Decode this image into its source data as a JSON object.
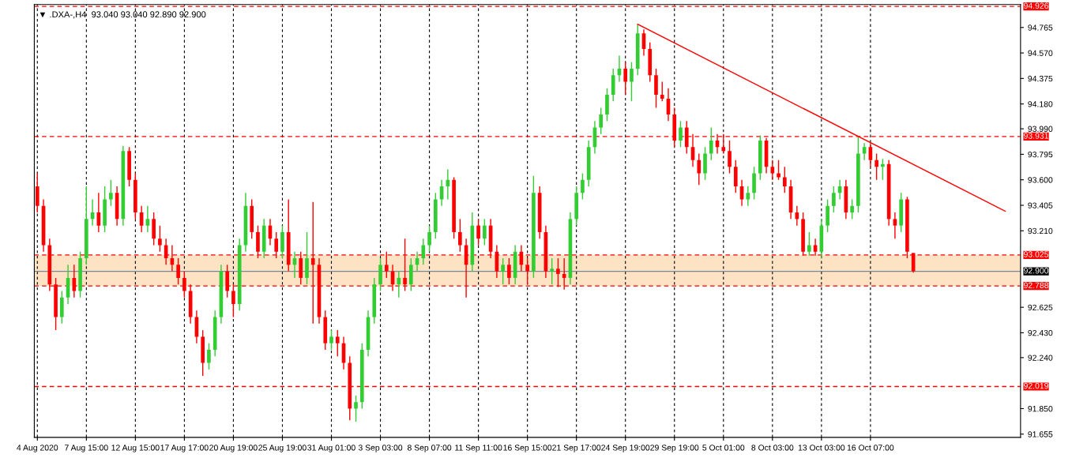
{
  "chart_data": {
    "type": "candlestick",
    "title": "▼ .DXA-,H4  93.040 93.040 92.890 92.900",
    "categories": [
      "4 Aug 2020",
      null,
      null,
      null,
      null,
      null,
      null,
      null,
      "7 Aug 15:00",
      null,
      null,
      null,
      null,
      null,
      null,
      null,
      "12 Aug 15:00",
      null,
      null,
      null,
      null,
      null,
      null,
      null,
      "17 Aug 17:00",
      null,
      null,
      null,
      null,
      null,
      null,
      null,
      "20 Aug 19:00",
      null,
      null,
      null,
      null,
      null,
      null,
      null,
      "25 Aug 19:00",
      null,
      null,
      null,
      null,
      null,
      null,
      null,
      "31 Aug 01:00",
      null,
      null,
      null,
      null,
      null,
      null,
      null,
      "3 Sep 03:00",
      null,
      null,
      null,
      null,
      null,
      null,
      null,
      "8 Sep 07:00",
      null,
      null,
      null,
      null,
      null,
      null,
      null,
      "11 Sep 11:00",
      null,
      null,
      null,
      null,
      null,
      null,
      null,
      "16 Sep 15:00",
      null,
      null,
      null,
      null,
      null,
      null,
      null,
      "21 Sep 17:00",
      null,
      null,
      null,
      null,
      null,
      null,
      null,
      "24 Sep 19:00",
      null,
      null,
      null,
      null,
      null,
      null,
      null,
      "29 Sep 19:00",
      null,
      null,
      null,
      null,
      null,
      null,
      null,
      "5 Oct 01:00",
      null,
      null,
      null,
      null,
      null,
      null,
      null,
      "8 Oct 03:00",
      null,
      null,
      null,
      null,
      null,
      null,
      null,
      "13 Oct 03:00",
      null,
      null,
      null,
      null,
      null,
      null,
      null,
      "16 Oct 07:00",
      null,
      null,
      null,
      null,
      null,
      null,
      null,
      null,
      null,
      null,
      null,
      null,
      null,
      null,
      null,
      null,
      null,
      null,
      null,
      null,
      null,
      null,
      null,
      null
    ],
    "ohlc": [
      [
        93.55,
        93.65,
        93.35,
        93.4
      ],
      [
        93.4,
        93.45,
        93.05,
        93.1
      ],
      [
        93.1,
        93.15,
        92.75,
        92.8
      ],
      [
        92.8,
        92.85,
        92.45,
        92.55
      ],
      [
        92.55,
        92.75,
        92.5,
        92.7
      ],
      [
        92.7,
        92.95,
        92.65,
        92.85
      ],
      [
        92.85,
        92.95,
        92.7,
        92.75
      ],
      [
        92.75,
        93.05,
        92.7,
        93.0
      ],
      [
        93.0,
        93.55,
        92.95,
        93.3
      ],
      [
        93.3,
        93.45,
        93.25,
        93.35
      ],
      [
        93.35,
        93.5,
        93.2,
        93.25
      ],
      [
        93.25,
        93.55,
        93.2,
        93.45
      ],
      [
        93.45,
        93.6,
        93.4,
        93.5
      ],
      [
        93.5,
        93.55,
        93.25,
        93.3
      ],
      [
        93.3,
        93.86,
        93.25,
        93.82
      ],
      [
        93.82,
        93.85,
        93.55,
        93.6
      ],
      [
        93.6,
        93.65,
        93.3,
        93.35
      ],
      [
        93.35,
        93.4,
        93.2,
        93.25
      ],
      [
        93.25,
        93.4,
        93.2,
        93.3
      ],
      [
        93.3,
        93.35,
        93.1,
        93.15
      ],
      [
        93.15,
        93.25,
        93.05,
        93.1
      ],
      [
        93.1,
        93.15,
        92.95,
        93.0
      ],
      [
        93.0,
        93.1,
        92.9,
        92.95
      ],
      [
        92.95,
        93.0,
        92.8,
        92.85
      ],
      [
        92.85,
        92.9,
        92.7,
        92.75
      ],
      [
        92.75,
        92.8,
        92.5,
        92.55
      ],
      [
        92.55,
        92.6,
        92.35,
        92.4
      ],
      [
        92.4,
        92.45,
        92.1,
        92.2
      ],
      [
        92.2,
        92.35,
        92.15,
        92.3
      ],
      [
        92.3,
        92.6,
        92.25,
        92.55
      ],
      [
        92.55,
        92.95,
        92.5,
        92.9
      ],
      [
        92.9,
        92.95,
        92.7,
        92.75
      ],
      [
        92.75,
        92.8,
        92.55,
        92.65
      ],
      [
        92.65,
        93.15,
        92.6,
        93.1
      ],
      [
        93.1,
        93.5,
        93.05,
        93.4
      ],
      [
        93.4,
        93.45,
        93.15,
        93.2
      ],
      [
        93.2,
        93.25,
        93.0,
        93.05
      ],
      [
        93.05,
        93.3,
        93.0,
        93.25
      ],
      [
        93.25,
        93.3,
        93.1,
        93.15
      ],
      [
        93.15,
        93.2,
        93.0,
        93.05
      ],
      [
        93.05,
        93.25,
        93.0,
        93.2
      ],
      [
        93.2,
        93.45,
        92.9,
        92.95
      ],
      [
        92.95,
        93.05,
        92.85,
        93.0
      ],
      [
        93.0,
        93.05,
        92.8,
        92.85
      ],
      [
        92.85,
        93.2,
        92.8,
        93.0
      ],
      [
        93.0,
        93.43,
        92.5,
        92.95
      ],
      [
        92.95,
        93.0,
        92.5,
        92.55
      ],
      [
        92.55,
        92.6,
        92.3,
        92.35
      ],
      [
        92.35,
        92.45,
        92.3,
        92.4
      ],
      [
        92.4,
        92.45,
        92.25,
        92.35
      ],
      [
        92.35,
        92.4,
        92.15,
        92.2
      ],
      [
        92.2,
        92.25,
        91.76,
        91.85
      ],
      [
        91.85,
        91.95,
        91.75,
        91.9
      ],
      [
        91.9,
        92.35,
        91.85,
        92.3
      ],
      [
        92.3,
        92.6,
        92.25,
        92.55
      ],
      [
        92.55,
        92.85,
        92.5,
        92.8
      ],
      [
        92.8,
        93.0,
        92.75,
        92.95
      ],
      [
        92.95,
        93.05,
        92.85,
        92.9
      ],
      [
        92.9,
        92.95,
        92.75,
        92.8
      ],
      [
        92.8,
        92.9,
        92.7,
        92.85
      ],
      [
        92.85,
        93.15,
        92.75,
        92.8
      ],
      [
        92.8,
        93.0,
        92.75,
        92.95
      ],
      [
        92.95,
        93.05,
        92.9,
        93.0
      ],
      [
        93.0,
        93.15,
        92.95,
        93.1
      ],
      [
        93.1,
        93.25,
        93.05,
        93.2
      ],
      [
        93.2,
        93.5,
        93.15,
        93.45
      ],
      [
        93.45,
        93.6,
        93.4,
        93.55
      ],
      [
        93.55,
        93.68,
        93.45,
        93.6
      ],
      [
        93.6,
        93.62,
        93.15,
        93.2
      ],
      [
        93.2,
        93.3,
        93.05,
        93.1
      ],
      [
        93.1,
        93.15,
        92.7,
        92.95
      ],
      [
        92.95,
        93.35,
        92.9,
        93.25
      ],
      [
        93.25,
        93.3,
        93.1,
        93.15
      ],
      [
        93.15,
        93.3,
        93.1,
        93.25
      ],
      [
        93.25,
        93.3,
        93.0,
        93.05
      ],
      [
        93.05,
        93.1,
        92.85,
        92.9
      ],
      [
        92.9,
        93.0,
        92.8,
        92.95
      ],
      [
        92.95,
        93.0,
        92.8,
        92.85
      ],
      [
        92.85,
        93.1,
        92.8,
        93.05
      ],
      [
        93.05,
        93.1,
        92.9,
        92.95
      ],
      [
        92.95,
        93.0,
        92.8,
        92.9
      ],
      [
        92.9,
        93.63,
        92.85,
        93.5
      ],
      [
        93.5,
        93.55,
        93.15,
        93.2
      ],
      [
        93.2,
        93.25,
        92.85,
        92.9
      ],
      [
        92.9,
        93.0,
        92.8,
        92.92
      ],
      [
        92.92,
        93.0,
        92.78,
        92.88
      ],
      [
        92.88,
        93.0,
        92.76,
        92.85
      ],
      [
        92.85,
        93.35,
        92.8,
        93.3
      ],
      [
        93.3,
        93.55,
        93.25,
        93.5
      ],
      [
        93.5,
        93.65,
        93.45,
        93.6
      ],
      [
        93.6,
        93.9,
        93.55,
        93.85
      ],
      [
        93.85,
        94.05,
        93.8,
        94.0
      ],
      [
        94.0,
        94.15,
        93.95,
        94.1
      ],
      [
        94.1,
        94.3,
        94.05,
        94.25
      ],
      [
        94.25,
        94.45,
        94.2,
        94.4
      ],
      [
        94.4,
        94.55,
        94.35,
        94.45
      ],
      [
        94.45,
        94.5,
        94.25,
        94.35
      ],
      [
        94.35,
        94.5,
        94.2,
        94.45
      ],
      [
        94.45,
        94.79,
        94.4,
        94.72
      ],
      [
        94.72,
        94.75,
        94.55,
        94.6
      ],
      [
        94.6,
        94.65,
        94.35,
        94.4
      ],
      [
        94.4,
        94.45,
        94.15,
        94.25
      ],
      [
        94.25,
        94.35,
        94.2,
        94.22
      ],
      [
        94.22,
        94.3,
        94.05,
        94.1
      ],
      [
        94.1,
        94.15,
        93.85,
        93.9
      ],
      [
        93.9,
        94.05,
        93.85,
        94.0
      ],
      [
        94.0,
        94.05,
        93.8,
        93.85
      ],
      [
        93.85,
        93.95,
        93.7,
        93.75
      ],
      [
        93.75,
        93.8,
        93.56,
        93.65
      ],
      [
        93.65,
        93.85,
        93.6,
        93.8
      ],
      [
        93.8,
        94.0,
        93.75,
        93.9
      ],
      [
        93.9,
        93.95,
        93.8,
        93.85
      ],
      [
        93.85,
        93.95,
        93.8,
        93.82
      ],
      [
        93.82,
        93.9,
        93.65,
        93.7
      ],
      [
        93.7,
        93.75,
        93.5,
        93.55
      ],
      [
        93.55,
        93.6,
        93.4,
        93.45
      ],
      [
        93.45,
        93.55,
        93.4,
        93.5
      ],
      [
        93.5,
        93.7,
        93.45,
        93.65
      ],
      [
        93.65,
        93.94,
        93.6,
        93.9
      ],
      [
        93.9,
        93.92,
        93.65,
        93.7
      ],
      [
        93.7,
        93.75,
        93.6,
        93.65
      ],
      [
        93.65,
        93.75,
        93.6,
        93.62
      ],
      [
        93.62,
        93.7,
        93.5,
        93.55
      ],
      [
        93.55,
        93.6,
        93.3,
        93.35
      ],
      [
        93.35,
        93.4,
        93.25,
        93.3
      ],
      [
        93.3,
        93.35,
        93.02,
        93.05
      ],
      [
        93.05,
        93.2,
        93.02,
        93.1
      ],
      [
        93.1,
        93.15,
        93.02,
        93.05
      ],
      [
        93.05,
        93.3,
        93.0,
        93.25
      ],
      [
        93.25,
        93.45,
        93.2,
        93.4
      ],
      [
        93.4,
        93.55,
        93.35,
        93.5
      ],
      [
        93.5,
        93.6,
        93.45,
        93.55
      ],
      [
        93.55,
        93.6,
        93.3,
        93.35
      ],
      [
        93.35,
        93.45,
        93.3,
        93.4
      ],
      [
        93.4,
        93.93,
        93.35,
        93.8
      ],
      [
        93.8,
        93.88,
        93.75,
        93.85
      ],
      [
        93.85,
        93.88,
        93.7,
        93.75
      ],
      [
        93.75,
        93.8,
        93.6,
        93.7
      ],
      [
        93.7,
        93.76,
        93.6,
        93.72
      ],
      [
        93.72,
        93.75,
        93.25,
        93.3
      ],
      [
        93.3,
        93.35,
        93.15,
        93.25
      ],
      [
        93.25,
        93.5,
        93.2,
        93.45
      ],
      [
        93.45,
        93.47,
        93.0,
        93.05
      ],
      [
        93.04,
        93.04,
        92.89,
        92.9
      ],
      null,
      null,
      null,
      null,
      null,
      null,
      null,
      null,
      null,
      null,
      null,
      null,
      null,
      null,
      null,
      null,
      null
    ],
    "colors": [
      "#ff0000",
      "#ff0000",
      "#ff0000",
      "#ff0000",
      "#32cd32",
      "#32cd32",
      "#ff0000",
      "#32cd32",
      "#32cd32",
      "#32cd32",
      "#ff0000",
      "#32cd32",
      "#32cd32",
      "#ff0000",
      "#32cd32",
      "#ff0000",
      "#ff0000",
      "#ff0000",
      "#32cd32",
      "#ff0000",
      "#ff0000",
      "#ff0000",
      "#ff0000",
      "#ff0000",
      "#ff0000",
      "#ff0000",
      "#ff0000",
      "#ff0000",
      "#32cd32",
      "#32cd32",
      "#32cd32",
      "#ff0000",
      "#ff0000",
      "#32cd32",
      "#32cd32",
      "#ff0000",
      "#ff0000",
      "#32cd32",
      "#ff0000",
      "#ff0000",
      "#32cd32",
      "#ff0000",
      "#32cd32",
      "#ff0000",
      "#32cd32",
      "#ff0000",
      "#ff0000",
      "#ff0000",
      "#32cd32",
      "#ff0000",
      "#ff0000",
      "#ff0000",
      "#32cd32",
      "#32cd32",
      "#32cd32",
      "#32cd32",
      "#32cd32",
      "#ff0000",
      "#ff0000",
      "#32cd32",
      "#ff0000",
      "#32cd32",
      "#32cd32",
      "#32cd32",
      "#32cd32",
      "#32cd32",
      "#32cd32",
      "#32cd32",
      "#ff0000",
      "#ff0000",
      "#ff0000",
      "#32cd32",
      "#ff0000",
      "#32cd32",
      "#ff0000",
      "#ff0000",
      "#32cd32",
      "#ff0000",
      "#32cd32",
      "#ff0000",
      "#ff0000",
      "#32cd32",
      "#ff0000",
      "#ff0000",
      "#32cd32",
      "#ff0000",
      "#ff0000",
      "#32cd32",
      "#32cd32",
      "#32cd32",
      "#32cd32",
      "#32cd32",
      "#32cd32",
      "#32cd32",
      "#32cd32",
      "#32cd32",
      "#ff0000",
      "#32cd32",
      "#32cd32",
      "#ff0000",
      "#ff0000",
      "#ff0000",
      "#ff0000",
      "#ff0000",
      "#ff0000",
      "#32cd32",
      "#ff0000",
      "#ff0000",
      "#ff0000",
      "#32cd32",
      "#32cd32",
      "#ff0000",
      "#ff0000",
      "#ff0000",
      "#ff0000",
      "#ff0000",
      "#32cd32",
      "#32cd32",
      "#32cd32",
      "#ff0000",
      "#ff0000",
      "#ff0000",
      "#ff0000",
      "#ff0000",
      "#ff0000",
      "#ff0000",
      "#32cd32",
      "#ff0000",
      "#32cd32",
      "#32cd32",
      "#32cd32",
      "#32cd32",
      "#ff0000",
      "#32cd32",
      "#32cd32",
      "#32cd32",
      "#ff0000",
      "#ff0000",
      "#32cd32",
      "#ff0000",
      "#ff0000",
      "#32cd32",
      "#ff0000",
      "#ff0000",
      null,
      null,
      null,
      null,
      null,
      null,
      null,
      null,
      null,
      null,
      null,
      null,
      null,
      null,
      null,
      null,
      null
    ],
    "series": [
      {
        "type": "line",
        "color": "#ff0000",
        "values": [
          null,
          null,
          null,
          null,
          null,
          null,
          null,
          null,
          null,
          null,
          null,
          null,
          null,
          null,
          null,
          null,
          null,
          null,
          null,
          null,
          null,
          null,
          null,
          null,
          null,
          null,
          null,
          null,
          null,
          null,
          null,
          null,
          null,
          null,
          null,
          null,
          null,
          null,
          null,
          null,
          null,
          null,
          null,
          null,
          null,
          null,
          null,
          null,
          null,
          null,
          null,
          null,
          null,
          null,
          null,
          null,
          null,
          null,
          null,
          null,
          null,
          null,
          null,
          null,
          null,
          null,
          null,
          null,
          null,
          null,
          null,
          null,
          null,
          null,
          null,
          null,
          null,
          null,
          null,
          null,
          null,
          null,
          null,
          null,
          null,
          null,
          null,
          null,
          null,
          null,
          null,
          null,
          null,
          null,
          null,
          null,
          null,
          null,
          94.79,
          null,
          null,
          null,
          null,
          null,
          null,
          null,
          null,
          null,
          null,
          null,
          null,
          null,
          null,
          null,
          null,
          null,
          null,
          null,
          null,
          null,
          null,
          null,
          null,
          null,
          null,
          null,
          null,
          null,
          null,
          null,
          null,
          null,
          null,
          null,
          null,
          null,
          null,
          null,
          null,
          null,
          null,
          null,
          null,
          null,
          null,
          null,
          null,
          null,
          null,
          null,
          null,
          null,
          null,
          null,
          null,
          null,
          null,
          null,
          93.36,
          null,
          null
        ]
      }
    ],
    "ylim": [
      91.63,
      94.94
    ],
    "yticks": [
      94.765,
      {
        "value": 94.57,
        "label": "94.570"
      },
      {
        "value": 94.375,
        "label": "94.375"
      },
      {
        "value": 94.18,
        "label": "94.180"
      },
      {
        "value": 93.99,
        "label": "93.990"
      },
      93.795,
      {
        "value": 93.6,
        "label": "93.600"
      },
      93.405,
      {
        "value": 93.21,
        "label": "93.210"
      },
      92.625,
      {
        "value": 92.43,
        "label": "92.430"
      },
      {
        "value": 92.24,
        "label": "92.240"
      },
      {
        "value": 91.85,
        "label": "91.850"
      },
      91.655
    ],
    "ref_lines": [
      {
        "axis": "y",
        "value": 94.926,
        "label": "94.926",
        "color": "#ff0000",
        "line_style": "dashed"
      },
      {
        "axis": "y",
        "value": 93.931,
        "label": "93.931",
        "color": "#ff0000",
        "line_style": "dashed"
      },
      {
        "axis": "y",
        "value": 93.025,
        "label": "93.025",
        "color": "#ff0000",
        "line_style": "dashed"
      },
      {
        "axis": "y",
        "value": 92.788,
        "label": "92.788",
        "color": "#ff0000",
        "line_style": "dashed"
      },
      {
        "axis": "y",
        "value": 92.019,
        "label": "92.019",
        "color": "#ff0000",
        "line_style": "dashed"
      },
      {
        "axis": "y",
        "value": 92.9,
        "label": "92.900",
        "color": "#778899",
        "line_style": "solid"
      }
    ],
    "bands": [
      {
        "axis": "y",
        "from": 92.788,
        "to": 93.025,
        "label": null,
        "color": "#fde3c4"
      }
    ],
    "grid": "x"
  }
}
